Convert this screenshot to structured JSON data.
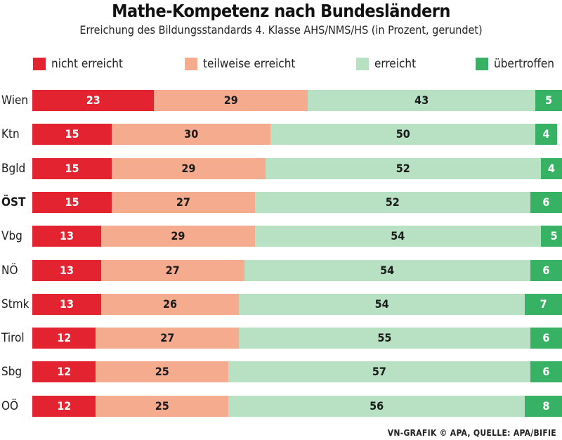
{
  "colors": {
    "nicht_erreicht": "#e3232f",
    "teilweise_erreicht": "#f5ab8e",
    "erreicht": "#b8e0c2",
    "uebertroffen": "#37b264",
    "label_on_red": "#ffffff",
    "label_on_light": "#1a1a1a",
    "label_on_green": "#ffffff"
  },
  "chart_data": {
    "type": "bar",
    "orientation": "horizontal",
    "stacked": true,
    "title": "Mathe-Kompetenz nach Bundesländern",
    "subtitle": "Erreichung des Bildungsstandards 4. Klasse AHS/NMS/HS (in Prozent, gerundet)",
    "source": "VN-GRAFIK © APA, QUELLE: APA/BIFIE",
    "categories": [
      "Wien",
      "Ktn",
      "Bgld",
      "ÖST",
      "Vbg",
      "NÖ",
      "Stmk",
      "Tirol",
      "Sbg",
      "OÖ"
    ],
    "highlight_category": "ÖST",
    "series": [
      {
        "name": "nicht erreicht",
        "values": [
          23,
          15,
          15,
          15,
          13,
          13,
          13,
          12,
          12,
          12
        ]
      },
      {
        "name": "teilweise erreicht",
        "values": [
          29,
          30,
          29,
          27,
          29,
          27,
          26,
          27,
          25,
          25
        ]
      },
      {
        "name": "erreicht",
        "values": [
          43,
          50,
          52,
          52,
          54,
          54,
          54,
          55,
          57,
          56
        ]
      },
      {
        "name": "übertroffen",
        "values": [
          5,
          4,
          4,
          6,
          5,
          6,
          7,
          6,
          6,
          8
        ]
      }
    ],
    "xlim": [
      0,
      100
    ],
    "legend_position": "top"
  }
}
